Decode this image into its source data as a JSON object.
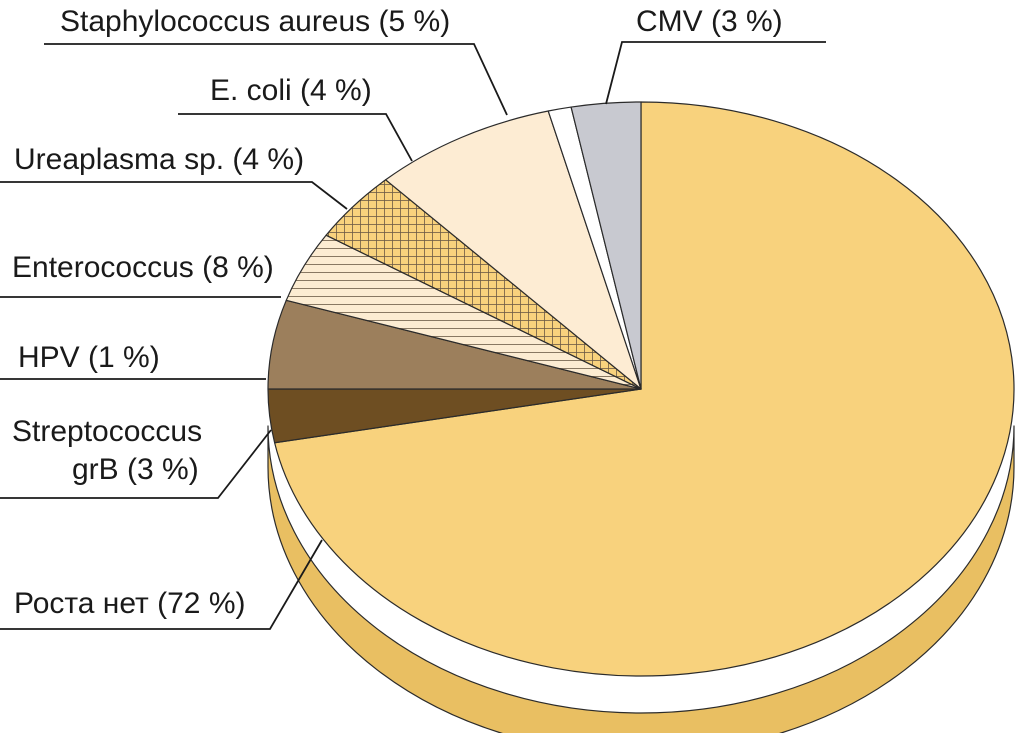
{
  "chart_data": {
    "type": "pie",
    "title": "",
    "style": "3d",
    "slices": [
      {
        "label": "Роста нет (72 %)",
        "value": 72,
        "color": "#f8d27d",
        "pattern": "none"
      },
      {
        "label": "CMV (3 %)",
        "value": 3,
        "color": "#6e4e22",
        "pattern": "none"
      },
      {
        "label": "Staphylococcus aureus (5 %)",
        "value": 5,
        "color": "#9c7f5c",
        "pattern": "none"
      },
      {
        "label": "E. coli (4 %)",
        "value": 4,
        "color": "#fcecd2",
        "pattern": "horizontal-lines"
      },
      {
        "label": "Ureaplasma sp. (4 %)",
        "value": 4,
        "color": "#f8d27d",
        "pattern": "grid"
      },
      {
        "label": "Enterococcus (8 %)",
        "value": 8,
        "color": "#fdecd3",
        "pattern": "none"
      },
      {
        "label": "HPV (1 %)",
        "value": 1,
        "color": "#ffffff",
        "pattern": "none"
      },
      {
        "label": "Streptococcus grB (3 %)",
        "value": 3,
        "color": "#c8c9d0",
        "pattern": "none"
      }
    ],
    "side_color": "#e9bf62"
  }
}
